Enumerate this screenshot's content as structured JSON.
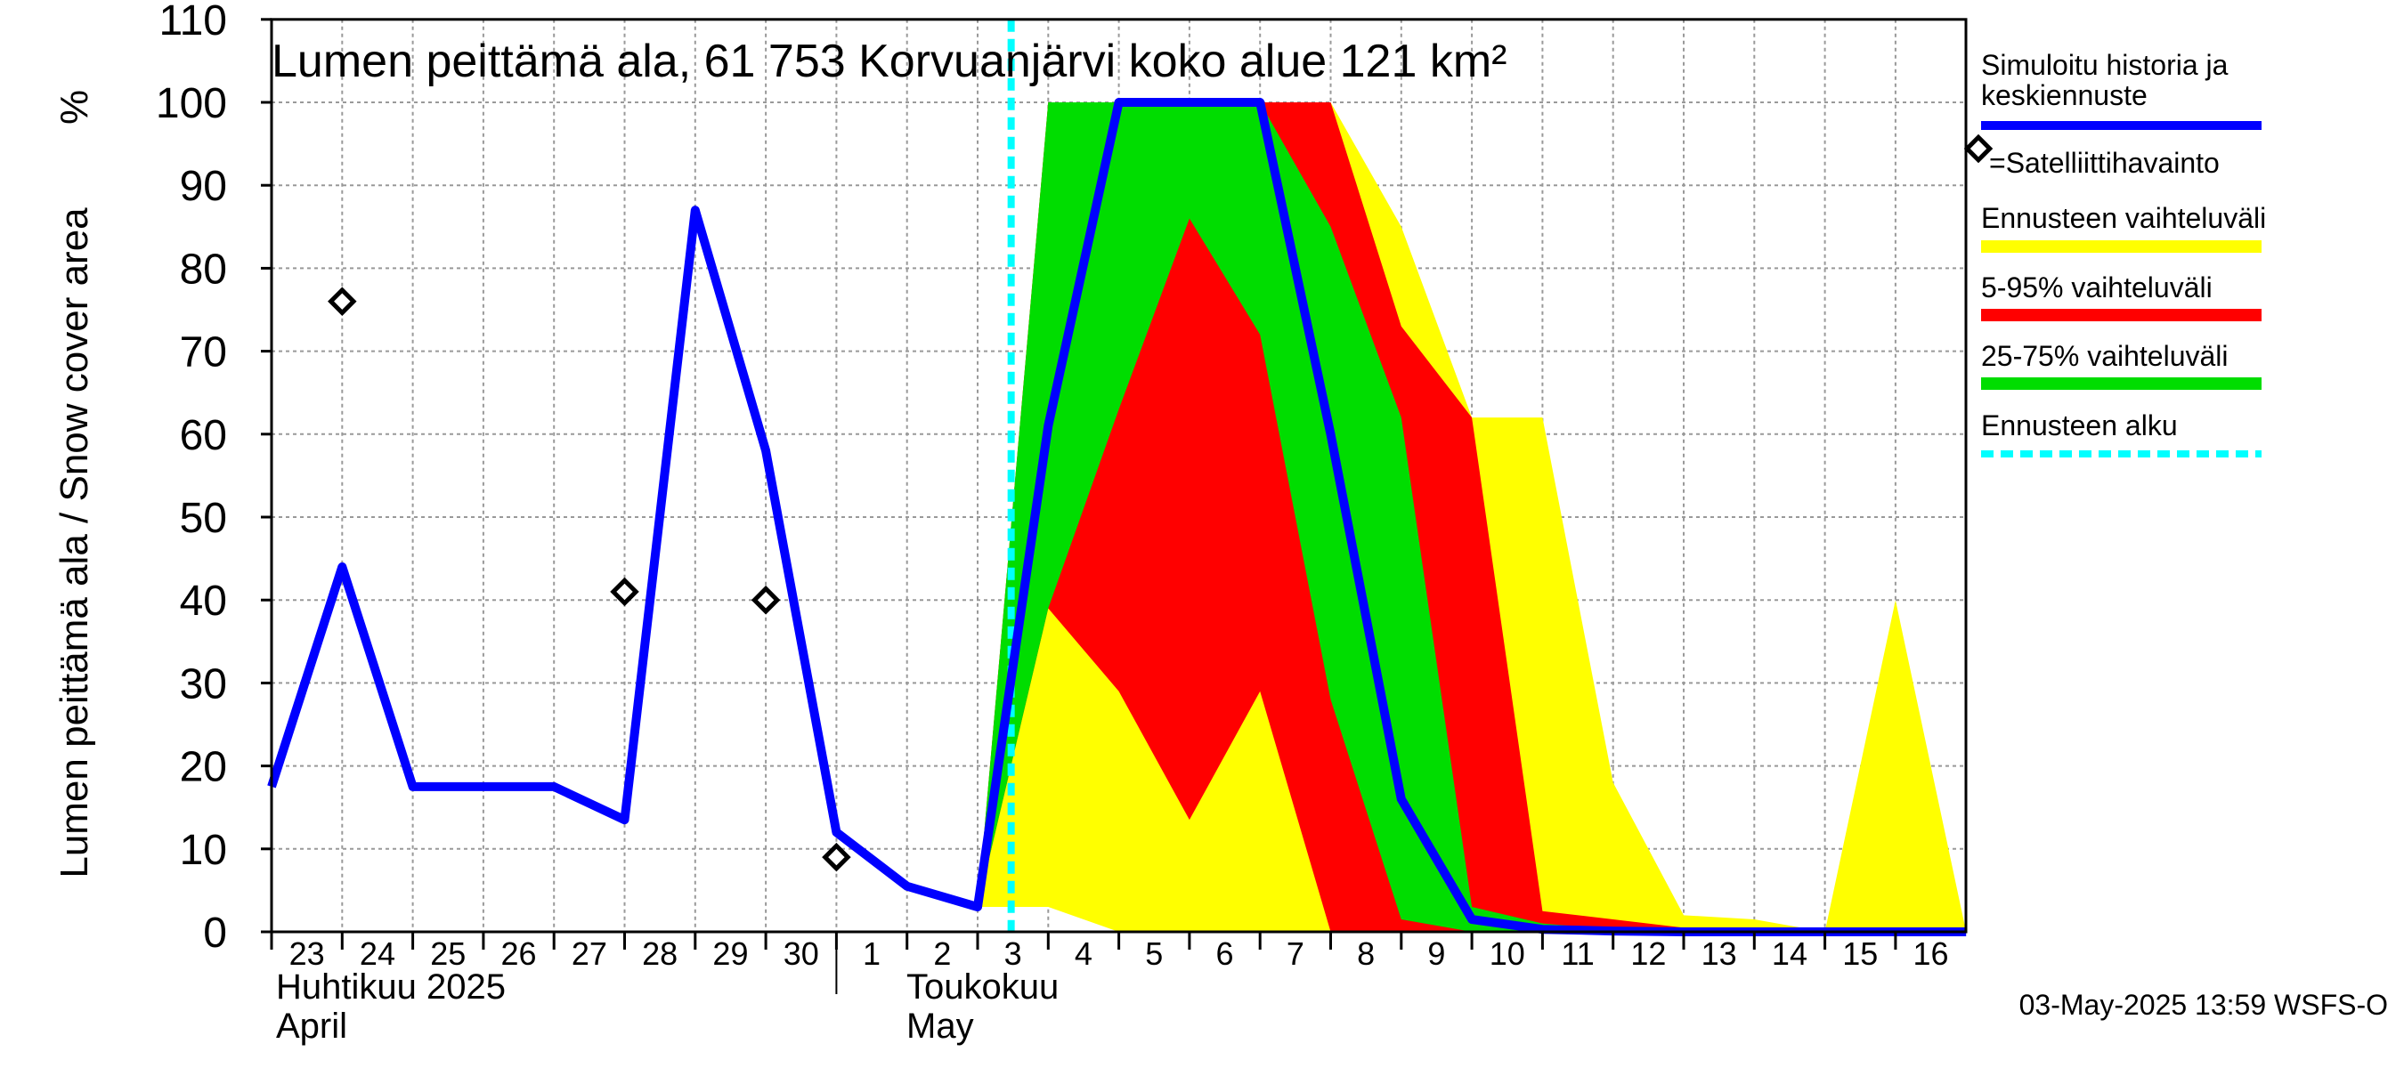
{
  "chart_data": {
    "type": "area",
    "title": "Lumen peittämä ala, 61 753 Korvuanjärvi koko alue 121 km²",
    "ylabel": "Lumen peittämä ala / Snow cover area",
    "yunit": "%",
    "ylim": [
      0,
      110
    ],
    "yticks": [
      0,
      10,
      20,
      30,
      40,
      50,
      60,
      70,
      80,
      90,
      100,
      110
    ],
    "grid": true,
    "x_day_labels": [
      "23",
      "24",
      "25",
      "26",
      "27",
      "28",
      "29",
      "30",
      "1",
      "2",
      "3",
      "4",
      "5",
      "6",
      "7",
      "8",
      "9",
      "10",
      "11",
      "12",
      "13",
      "14",
      "15",
      "16"
    ],
    "month_labels": [
      {
        "fi": "Huhtikuu  2025",
        "en": "April"
      },
      {
        "fi": "Toukokuu",
        "en": "May"
      }
    ],
    "forecast_start": "3",
    "legend_position": "right",
    "legend": [
      {
        "label": "Simuloitu historia ja keskiennuste",
        "line1": "Simuloitu historia ja",
        "line2": "keskiennuste",
        "color": "#0000ff",
        "style": "line"
      },
      {
        "label": "=Satelliittihavainto",
        "color": "#000000",
        "style": "diamond"
      },
      {
        "label": "Ennusteen vaihteluväli",
        "color": "#ffff00",
        "style": "band"
      },
      {
        "label": "5-95% vaihteluväli",
        "color": "#ff0000",
        "style": "band"
      },
      {
        "label": "25-75% vaihteluväli",
        "color": "#00dd00",
        "style": "band"
      },
      {
        "label": "Ennusteen alku",
        "color": "#00ffff",
        "style": "dashed"
      }
    ],
    "series": [
      {
        "name": "Simuloitu historia ja keskiennuste",
        "x": [
          0,
          1,
          2,
          3,
          4,
          5,
          6,
          7,
          8,
          9,
          10,
          11,
          12,
          13,
          14,
          15,
          16,
          17,
          18,
          19,
          20,
          21,
          22,
          23,
          24
        ],
        "values": [
          17.5,
          44,
          17.5,
          17.5,
          17.5,
          13.5,
          87,
          58,
          12,
          5.5,
          3,
          61,
          100,
          100,
          100,
          60,
          16,
          1.5,
          0.3,
          0.1,
          0,
          0,
          0,
          0,
          0
        ]
      },
      {
        "name": "Satelliittihavainto",
        "x": [
          1,
          5,
          7,
          8
        ],
        "values": [
          76,
          41,
          40,
          9
        ]
      }
    ],
    "bands": [
      {
        "name": "Ennusteen vaihteluväli",
        "x": [
          10,
          11,
          12,
          13,
          14,
          15,
          16,
          17,
          18,
          19,
          20,
          21,
          22,
          23,
          24
        ],
        "upper": [
          3,
          100,
          100,
          100,
          100,
          100,
          85,
          62,
          62,
          18,
          2,
          1.5,
          0,
          40,
          0
        ],
        "lower": [
          3,
          3,
          0,
          0,
          0,
          0,
          0,
          0,
          0,
          0,
          0,
          0,
          0,
          0,
          0
        ]
      },
      {
        "name": "5-95% vaihteluväli",
        "x": [
          10,
          11,
          12,
          13,
          14,
          15,
          16,
          17,
          18,
          19,
          20,
          21,
          22,
          23,
          24
        ],
        "upper": [
          3,
          100,
          100,
          100,
          100,
          100,
          73,
          62,
          2.5,
          1.5,
          0.5,
          0.2,
          0,
          0,
          0
        ],
        "lower": [
          3,
          39,
          29,
          13.5,
          29,
          0,
          0,
          0,
          0,
          0,
          0,
          0,
          0,
          0,
          0
        ]
      },
      {
        "name": "25-75% vaihteluväli",
        "x": [
          10,
          11,
          12,
          13,
          14,
          15,
          16,
          17,
          18,
          19,
          20,
          21,
          22,
          23,
          24
        ],
        "upper": [
          3,
          100,
          100,
          100,
          100,
          85,
          62,
          3,
          1,
          0.3,
          0,
          0,
          0,
          0,
          0
        ],
        "lower": [
          3,
          39,
          63,
          86,
          72,
          28,
          1.5,
          0,
          0,
          0,
          0,
          0,
          0,
          0,
          0
        ]
      }
    ],
    "timestamp": "03-May-2025 13:59 WSFS-O"
  },
  "colors": {
    "mean": "#0000ff",
    "range": "#ffff00",
    "p5_95": "#ff0000",
    "p25_75": "#00dd00",
    "forecast_start": "#00ffff",
    "grid": "#999999"
  }
}
